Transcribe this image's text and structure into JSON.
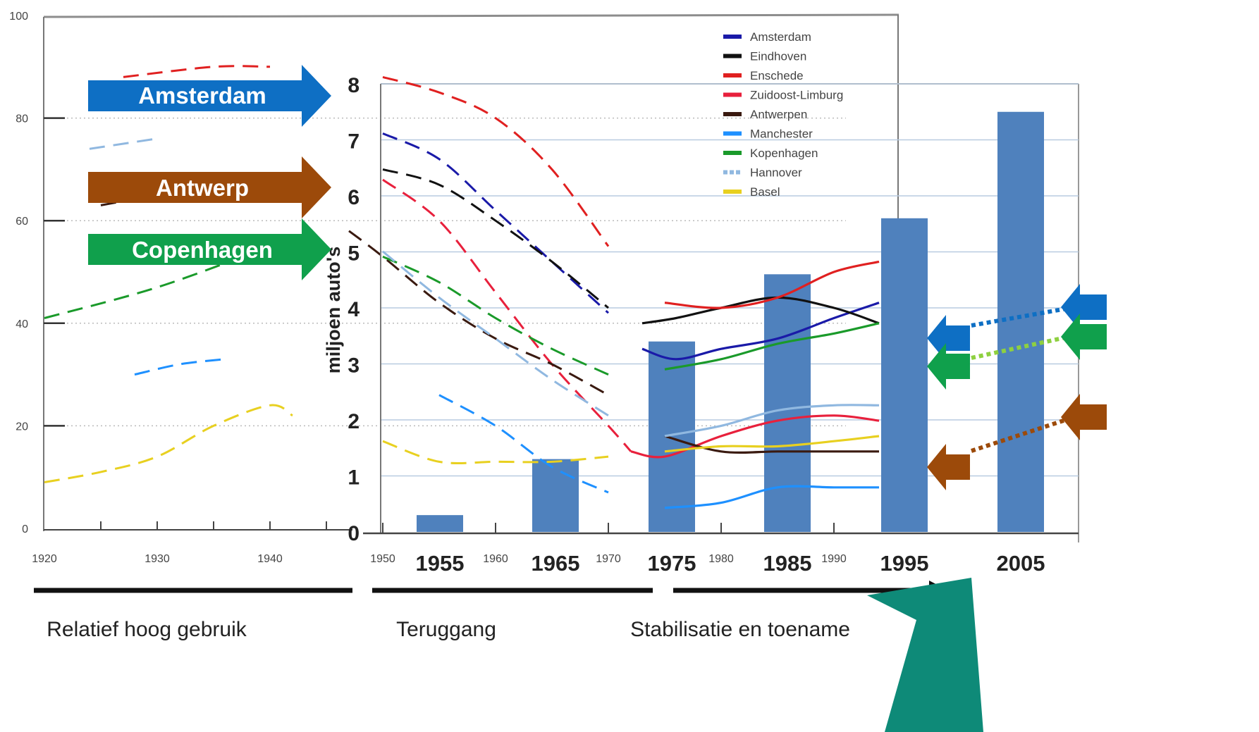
{
  "colors": {
    "Amsterdam": "#1a1aa8",
    "Eindhoven": "#111111",
    "Enschede": "#e02020",
    "Zuidoost-Limburg": "#e8203c",
    "Antwerpen": "#3a1a10",
    "Manchester": "#1e90ff",
    "Kopenhagen": "#1a9a2a",
    "Hannover": "#90b8e0",
    "Basel": "#e8d020",
    "bars": "#4f81bd",
    "arrow_amsterdam": "#0e6fc4",
    "arrow_antwerp": "#9c4a0a",
    "arrow_copenhagen": "#10a04c",
    "arrow_light_green": "#8ed040",
    "teal": "#0e8a78"
  },
  "left_panel": {
    "y_ticks": [
      "0",
      "20",
      "40",
      "60",
      "80",
      "100"
    ],
    "x_ticks": [
      "1920",
      "1930",
      "1940"
    ]
  },
  "legend": [
    "Amsterdam",
    "Eindhoven",
    "Enschede",
    "Zuidoost-Limburg",
    "Antwerpen",
    "Manchester",
    "Kopenhagen",
    "Hannover",
    "Basel"
  ],
  "callouts": {
    "amsterdam": "Amsterdam",
    "antwerp": "Antwerp",
    "copenhagen": "Copenhagen"
  },
  "bottom": {
    "relatief": "Relatief hoog gebruik",
    "teruggang": "Teruggang",
    "stabilisatie": "Stabilisatie en toename"
  },
  "chart_data": [
    {
      "type": "line",
      "description_panel": "bicycle share by city",
      "ylim": [
        0,
        100
      ],
      "xlim": [
        1920,
        2000
      ],
      "y_ticks": [
        0,
        20,
        40,
        60,
        80,
        100
      ],
      "x_ticks": [
        1920,
        1930,
        1940,
        1950,
        1960,
        1970,
        1980,
        1990
      ],
      "legend_position": "top-right",
      "series": [
        {
          "name": "Amsterdam",
          "style": "dashed-then-solid",
          "points": [
            [
              1950,
              77
            ],
            [
              1955,
              72
            ],
            [
              1960,
              62
            ],
            [
              1965,
              52
            ],
            [
              1970,
              42
            ],
            [
              1973,
              35
            ],
            [
              1976,
              33
            ],
            [
              1980,
              35
            ],
            [
              1985,
              37
            ],
            [
              1990,
              41
            ],
            [
              1994,
              44
            ]
          ]
        },
        {
          "name": "Eindhoven",
          "style": "dashed-then-solid",
          "points": [
            [
              1950,
              70
            ],
            [
              1955,
              67
            ],
            [
              1960,
              60
            ],
            [
              1965,
              52
            ],
            [
              1970,
              43
            ],
            [
              1973,
              40
            ],
            [
              1976,
              41
            ],
            [
              1980,
              43
            ],
            [
              1985,
              45
            ],
            [
              1990,
              43
            ],
            [
              1994,
              40
            ]
          ]
        },
        {
          "name": "Enschede",
          "style": "dashed-then-solid",
          "points": [
            [
              1927,
              88
            ],
            [
              1935,
              90
            ],
            [
              1940,
              90
            ],
            [
              1950,
              88
            ],
            [
              1955,
              85
            ],
            [
              1960,
              80
            ],
            [
              1965,
              70
            ],
            [
              1970,
              55
            ],
            [
              1975,
              44
            ],
            [
              1980,
              43
            ],
            [
              1985,
              45
            ],
            [
              1990,
              50
            ],
            [
              1994,
              52
            ]
          ]
        },
        {
          "name": "Zuidoost-Limburg",
          "style": "dashed-then-solid",
          "points": [
            [
              1950,
              68
            ],
            [
              1955,
              60
            ],
            [
              1960,
              46
            ],
            [
              1965,
              32
            ],
            [
              1970,
              20
            ],
            [
              1972,
              15
            ],
            [
              1975,
              14
            ],
            [
              1980,
              18
            ],
            [
              1985,
              21
            ],
            [
              1990,
              22
            ],
            [
              1994,
              21
            ]
          ]
        },
        {
          "name": "Antwerpen",
          "style": "dashed-then-solid",
          "points": [
            [
              1925,
              63
            ],
            [
              1930,
              65
            ],
            [
              1947,
              58
            ],
            [
              1950,
              53
            ],
            [
              1955,
              44
            ],
            [
              1960,
              37
            ],
            [
              1965,
              32
            ],
            [
              1970,
              26
            ],
            [
              1975,
              18
            ],
            [
              1980,
              15
            ],
            [
              1985,
              15
            ],
            [
              1990,
              15
            ],
            [
              1994,
              15
            ]
          ]
        },
        {
          "name": "Manchester",
          "style": "dashed-then-solid",
          "points": [
            [
              1928,
              30
            ],
            [
              1932,
              32
            ],
            [
              1936,
              33
            ],
            [
              1955,
              26
            ],
            [
              1960,
              20
            ],
            [
              1965,
              12
            ],
            [
              1970,
              7
            ],
            [
              1975,
              4
            ],
            [
              1980,
              5
            ],
            [
              1985,
              8
            ],
            [
              1990,
              8
            ],
            [
              1994,
              8
            ]
          ]
        },
        {
          "name": "Kopenhagen",
          "style": "dashed-then-solid",
          "points": [
            [
              1920,
              41
            ],
            [
              1930,
              47
            ],
            [
              1940,
              55
            ],
            [
              1950,
              53
            ],
            [
              1955,
              48
            ],
            [
              1960,
              41
            ],
            [
              1965,
              35
            ],
            [
              1970,
              30
            ],
            [
              1975,
              31
            ],
            [
              1980,
              33
            ],
            [
              1985,
              36
            ],
            [
              1990,
              38
            ],
            [
              1994,
              40
            ]
          ]
        },
        {
          "name": "Hannover",
          "style": "dashed-then-solid",
          "points": [
            [
              1924,
              74
            ],
            [
              1930,
              76
            ],
            [
              1950,
              54
            ],
            [
              1955,
              45
            ],
            [
              1960,
              37
            ],
            [
              1965,
              29
            ],
            [
              1970,
              22
            ],
            [
              1975,
              18
            ],
            [
              1980,
              20
            ],
            [
              1985,
              23
            ],
            [
              1990,
              24
            ],
            [
              1994,
              24
            ]
          ]
        },
        {
          "name": "Basel",
          "style": "dashed-then-solid",
          "points": [
            [
              1920,
              9
            ],
            [
              1925,
              11
            ],
            [
              1930,
              14
            ],
            [
              1935,
              20
            ],
            [
              1940,
              24
            ],
            [
              1942,
              22
            ],
            [
              1950,
              17
            ],
            [
              1955,
              13
            ],
            [
              1960,
              13
            ],
            [
              1965,
              13
            ],
            [
              1970,
              14
            ],
            [
              1975,
              15
            ],
            [
              1980,
              16
            ],
            [
              1985,
              16
            ],
            [
              1990,
              17
            ],
            [
              1994,
              18
            ]
          ]
        }
      ]
    },
    {
      "type": "bar",
      "ylabel": "miljoen auto's",
      "ylim": [
        0,
        8
      ],
      "y_ticks": [
        0,
        1,
        2,
        3,
        4,
        5,
        6,
        7,
        8
      ],
      "categories": [
        "1955",
        "1965",
        "1975",
        "1985",
        "1995",
        "2005"
      ],
      "values": [
        0.3,
        1.3,
        3.4,
        4.6,
        5.6,
        7.5
      ],
      "color": "#4f81bd"
    }
  ]
}
